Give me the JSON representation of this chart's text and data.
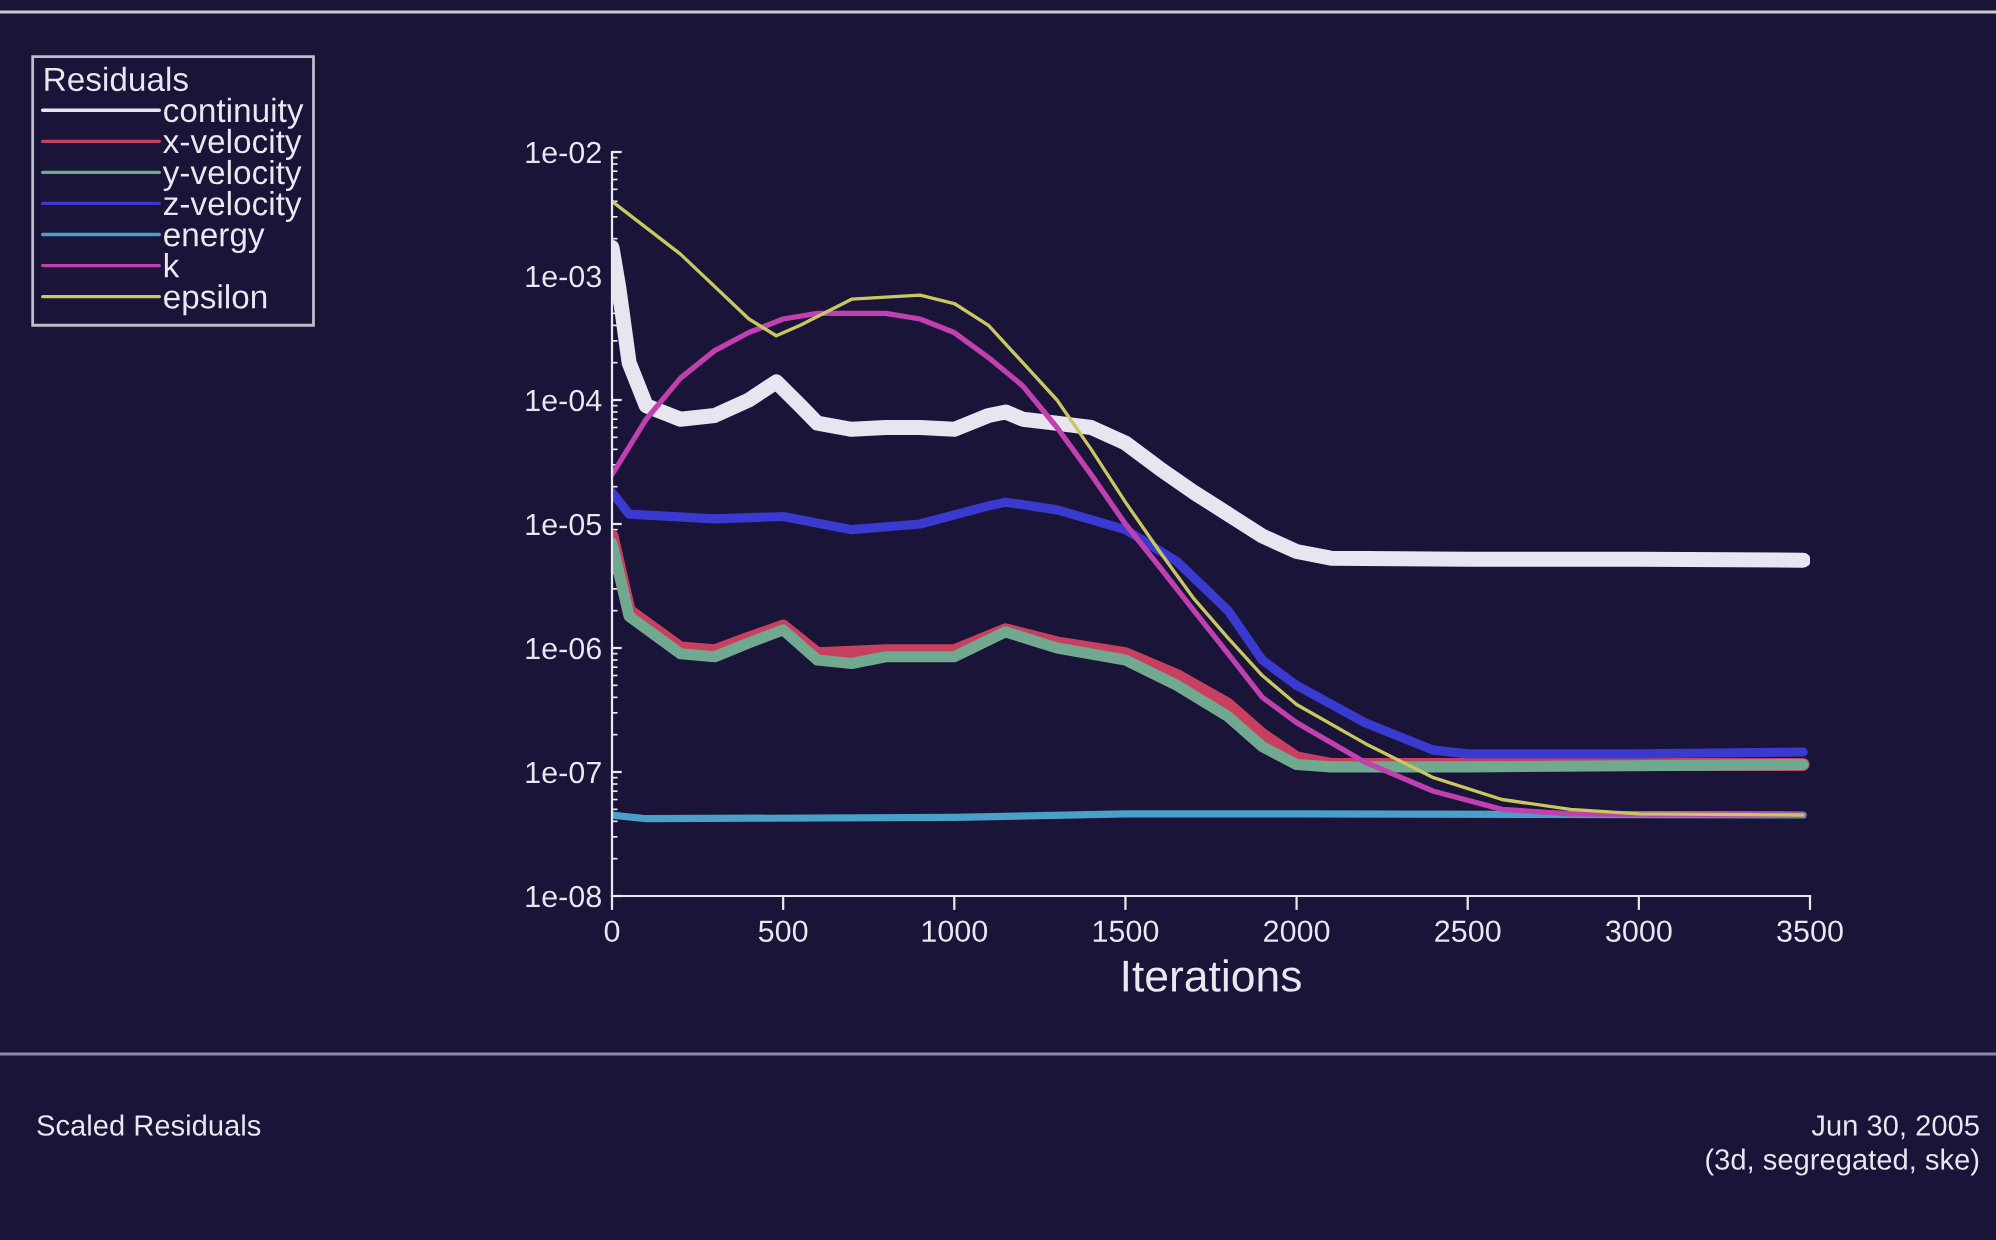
{
  "chart_data": {
    "type": "line",
    "xlabel": "Iterations",
    "legend_title": "Residuals",
    "legend": "top left",
    "log": "y",
    "grid": false,
    "marker": "none",
    "line_style": "solid",
    "xlim": [
      0,
      3500
    ],
    "xticks": [
      0,
      500,
      1000,
      1500,
      2000,
      2500,
      3000,
      3500
    ],
    "ylim": [
      1e-08,
      0.01
    ],
    "yticks": [
      {
        "value": 1e-08,
        "label": "1e-08"
      },
      {
        "value": 1e-07,
        "label": "1e-07"
      },
      {
        "value": 1e-06,
        "label": "1e-06"
      },
      {
        "value": 1e-05,
        "label": "1e-05"
      },
      {
        "value": 0.0001,
        "label": "1e-04"
      },
      {
        "value": 0.001,
        "label": "1e-03"
      },
      {
        "value": 0.01,
        "label": "1e-02"
      }
    ],
    "annotations": [
      "Scaled Residuals",
      "Jun 30, 2005",
      "(3d, segregated, ske)"
    ],
    "series": [
      {
        "name": "continuity",
        "color": "#e8e4f0",
        "x": [
          0,
          20,
          50,
          100,
          200,
          300,
          400,
          480,
          550,
          600,
          700,
          800,
          900,
          1000,
          1100,
          1150,
          1200,
          1300,
          1400,
          1500,
          1600,
          1700,
          1800,
          1900,
          2000,
          2100,
          2500,
          3000,
          3480
        ],
        "values": [
          0.0017,
          0.0008,
          0.0002,
          9e-05,
          7e-05,
          7.5e-05,
          0.0001,
          0.00014,
          9e-05,
          6.5e-05,
          5.8e-05,
          6e-05,
          6e-05,
          5.8e-05,
          7.5e-05,
          8e-05,
          7e-05,
          6.5e-05,
          6e-05,
          4.5e-05,
          2.8e-05,
          1.8e-05,
          1.2e-05,
          8e-06,
          6e-06,
          5.3e-06,
          5.2e-06,
          5.2e-06,
          5.1e-06
        ]
      },
      {
        "name": "x-velocity",
        "color": "#c84060",
        "x": [
          0,
          50,
          200,
          300,
          400,
          500,
          600,
          800,
          1000,
          1150,
          1300,
          1500,
          1650,
          1800,
          1900,
          2000,
          2100,
          2500,
          3480
        ],
        "values": [
          8e-06,
          2e-06,
          1e-06,
          9.5e-07,
          1.2e-06,
          1.5e-06,
          9e-07,
          9.5e-07,
          9.5e-07,
          1.4e-06,
          1.1e-06,
          9e-07,
          6e-07,
          3.5e-07,
          2e-07,
          1.3e-07,
          1.15e-07,
          1.15e-07,
          1.15e-07
        ]
      },
      {
        "name": "y-velocity",
        "color": "#70a890",
        "x": [
          0,
          50,
          200,
          300,
          400,
          500,
          600,
          700,
          800,
          1000,
          1150,
          1300,
          1500,
          1650,
          1800,
          1900,
          2000,
          2100,
          2500,
          3480
        ],
        "values": [
          7e-06,
          1.8e-06,
          9e-07,
          8.5e-07,
          1.1e-06,
          1.4e-06,
          8e-07,
          7.5e-07,
          8.5e-07,
          8.5e-07,
          1.35e-06,
          1e-06,
          8e-07,
          5e-07,
          2.8e-07,
          1.6e-07,
          1.15e-07,
          1.1e-07,
          1.1e-07,
          1.15e-07
        ]
      },
      {
        "name": "z-velocity",
        "color": "#3a3ad0",
        "x": [
          0,
          50,
          300,
          500,
          700,
          900,
          1100,
          1150,
          1300,
          1500,
          1650,
          1800,
          1900,
          2000,
          2200,
          2400,
          2500,
          3000,
          3480
        ],
        "values": [
          1.8e-05,
          1.2e-05,
          1.1e-05,
          1.15e-05,
          9e-06,
          1e-05,
          1.4e-05,
          1.5e-05,
          1.3e-05,
          9e-06,
          5e-06,
          2e-06,
          8e-07,
          5e-07,
          2.5e-07,
          1.5e-07,
          1.4e-07,
          1.4e-07,
          1.45e-07
        ]
      },
      {
        "name": "energy",
        "color": "#4aa0c8",
        "x": [
          0,
          100,
          1000,
          1500,
          2000,
          3480
        ],
        "values": [
          4.5e-08,
          4.2e-08,
          4.3e-08,
          4.6e-08,
          4.6e-08,
          4.5e-08
        ]
      },
      {
        "name": "k",
        "color": "#c040b0",
        "x": [
          0,
          100,
          200,
          300,
          400,
          500,
          600,
          800,
          900,
          1000,
          1100,
          1200,
          1300,
          1400,
          1500,
          1600,
          1700,
          1800,
          1900,
          2000,
          2200,
          2400,
          2600,
          2800,
          3480
        ],
        "values": [
          2.5e-05,
          7e-05,
          0.00015,
          0.00025,
          0.00035,
          0.00045,
          0.0005,
          0.0005,
          0.00045,
          0.00035,
          0.00022,
          0.00013,
          6e-05,
          2.5e-05,
          1e-05,
          4.5e-06,
          2e-06,
          9e-07,
          4e-07,
          2.5e-07,
          1.2e-07,
          7e-08,
          5e-08,
          4.6e-08,
          4.5e-08
        ]
      },
      {
        "name": "epsilon",
        "color": "#c8c860",
        "x": [
          0,
          200,
          400,
          480,
          550,
          700,
          900,
          1000,
          1100,
          1200,
          1300,
          1400,
          1500,
          1600,
          1700,
          1800,
          1900,
          2000,
          2200,
          2400,
          2600,
          2800,
          3000,
          3480
        ],
        "values": [
          0.004,
          0.0015,
          0.00045,
          0.00033,
          0.0004,
          0.00065,
          0.0007,
          0.0006,
          0.0004,
          0.0002,
          0.0001,
          4e-05,
          1.5e-05,
          6e-06,
          2.5e-06,
          1.2e-06,
          6e-07,
          3.5e-07,
          1.7e-07,
          9e-08,
          6e-08,
          5e-08,
          4.6e-08,
          4.5e-08
        ]
      }
    ]
  }
}
